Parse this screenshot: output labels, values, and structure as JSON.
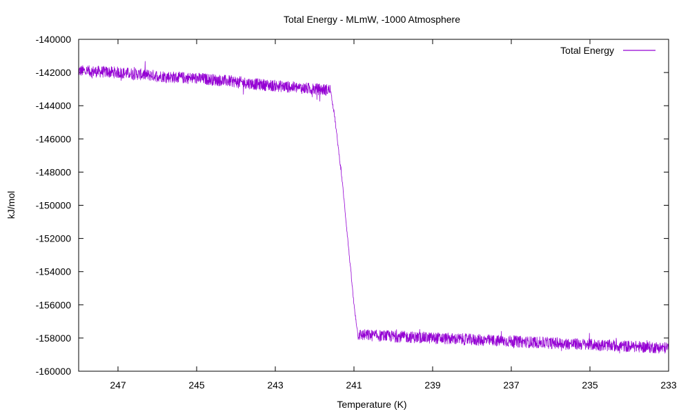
{
  "chart_data": {
    "type": "line",
    "title": "Total Energy - MLmW, -1000 Atmosphere",
    "xlabel": "Temperature (K)",
    "ylabel": "kJ/mol",
    "xlim": [
      248,
      233
    ],
    "ylim": [
      -160000,
      -140000
    ],
    "x_ticks": [
      "247",
      "245",
      "243",
      "241",
      "239",
      "237",
      "235",
      "233"
    ],
    "x_tick_values": [
      247,
      245,
      243,
      241,
      239,
      237,
      235,
      233
    ],
    "y_ticks": [
      "-140000",
      "-142000",
      "-144000",
      "-146000",
      "-148000",
      "-150000",
      "-152000",
      "-154000",
      "-156000",
      "-158000",
      "-160000"
    ],
    "y_tick_values": [
      -140000,
      -142000,
      -144000,
      -146000,
      -148000,
      -150000,
      -152000,
      -154000,
      -156000,
      -158000,
      -160000
    ],
    "grid": false,
    "legend_position": "top-right",
    "series": [
      {
        "name": "Total Energy",
        "color": "#9400D3",
        "x": [
          248,
          247.5,
          247,
          246.5,
          246,
          245.5,
          245,
          244.5,
          244,
          243.5,
          243,
          242.5,
          242,
          241.6,
          241.5,
          241.4,
          241.3,
          241.2,
          241.1,
          241.0,
          240.9,
          240.5,
          240,
          239.5,
          239,
          238.5,
          238,
          237.5,
          237,
          236.5,
          236,
          235.5,
          235,
          234.5,
          234,
          233.5,
          233
        ],
        "values": [
          -141900,
          -141950,
          -142000,
          -142100,
          -142200,
          -142300,
          -142350,
          -142450,
          -142550,
          -142700,
          -142800,
          -142900,
          -143000,
          -143050,
          -144500,
          -146500,
          -148500,
          -151000,
          -153500,
          -156000,
          -157800,
          -157850,
          -157900,
          -157950,
          -158000,
          -158050,
          -158100,
          -158150,
          -158200,
          -158250,
          -158300,
          -158350,
          -158400,
          -158450,
          -158500,
          -158550,
          -158600
        ],
        "noise_amplitude": 350
      }
    ]
  }
}
